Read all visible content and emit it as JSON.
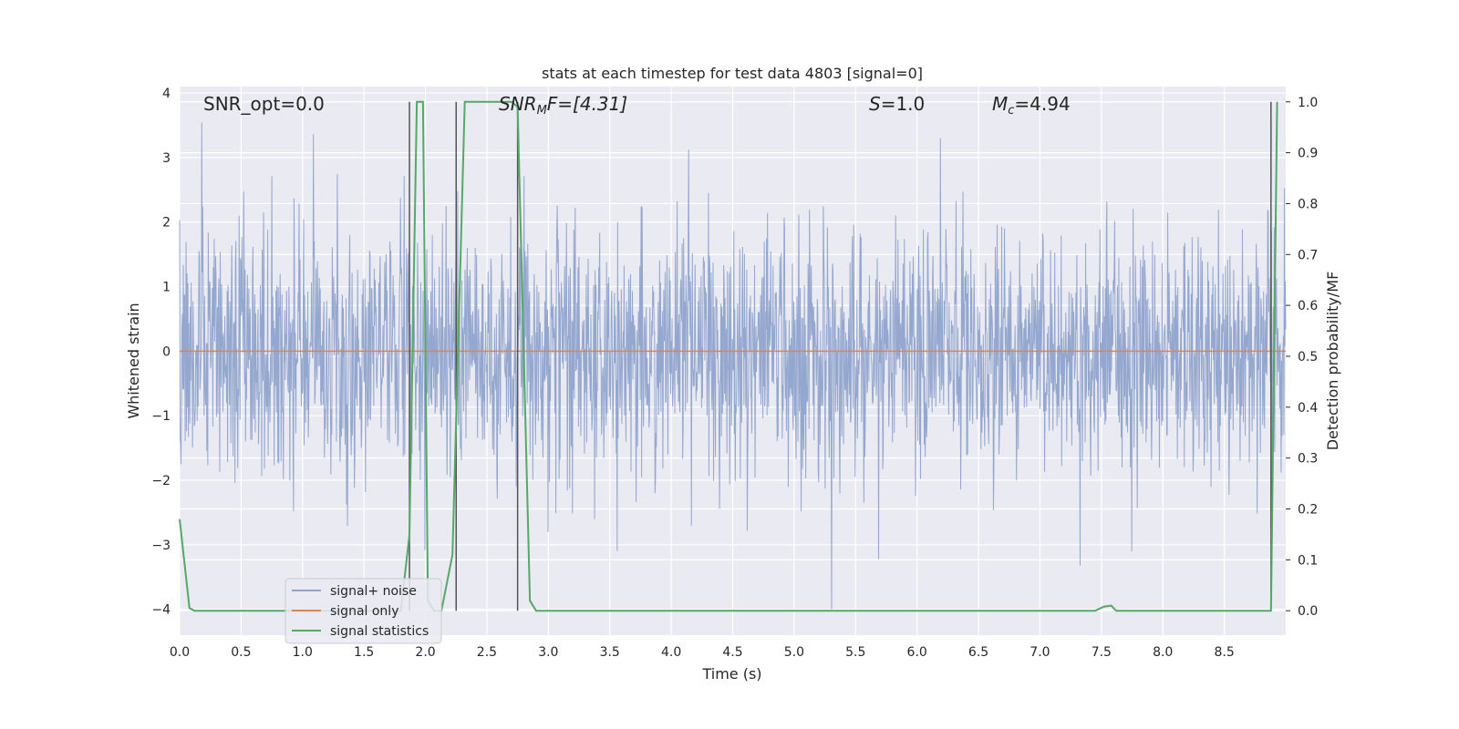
{
  "chart_data": {
    "type": "line",
    "title": "stats at each timestep for test data 4803 [signal=0]",
    "xlabel": "Time (s)",
    "ylabel": "Whitened strain",
    "y2label": "Detection probability/MF",
    "xlim": [
      0.0,
      9.0
    ],
    "ylim": [
      -4.4,
      4.1
    ],
    "y2lim": [
      -0.048,
      1.03
    ],
    "xticks": [
      "0.0",
      "0.5",
      "1.0",
      "1.5",
      "2.0",
      "2.5",
      "3.0",
      "3.5",
      "4.0",
      "4.5",
      "5.0",
      "5.5",
      "6.0",
      "6.5",
      "7.0",
      "7.5",
      "8.0",
      "8.5"
    ],
    "yticks": [
      "4",
      "3",
      "2",
      "1",
      "0",
      "−1",
      "−2",
      "−3",
      "−4"
    ],
    "y2ticks": [
      "1.0",
      "0.9",
      "0.8",
      "0.7",
      "0.6",
      "0.5",
      "0.4",
      "0.3",
      "0.2",
      "0.1",
      "0.0"
    ],
    "grid": true,
    "legend_position": "lower-left",
    "annotations": {
      "snr_opt": "SNR_opt=0.0",
      "snr_mf_name": "SNR",
      "snr_mf_sub": "M",
      "snr_mf_rest": "F=[4.31]",
      "s_name": "S",
      "s_rest": "=1.0",
      "mc_name": "M",
      "mc_sub": "c",
      "mc_rest": "=4.94"
    },
    "vertical_markers": [
      1.87,
      2.25,
      2.75,
      8.88
    ],
    "series": [
      {
        "name": "signal+ noise",
        "color": "#8fa3cc",
        "description": "dense whitened noise, approximately Gaussian with unit variance, peaks near +3.7 and -4.0"
      },
      {
        "name": "signal only",
        "color": "#dd8452",
        "x": [
          0.0,
          9.0
        ],
        "y": [
          0.0,
          0.0
        ]
      },
      {
        "name": "signal statistics",
        "color": "#55a868",
        "axis": "right",
        "x": [
          0.0,
          0.08,
          0.12,
          0.5,
          1.0,
          1.5,
          1.8,
          1.87,
          1.93,
          1.98,
          2.02,
          2.07,
          2.13,
          2.22,
          2.32,
          2.5,
          2.6,
          2.7,
          2.75,
          2.85,
          2.9,
          3.0,
          4.0,
          5.0,
          6.0,
          7.0,
          7.45,
          7.52,
          7.58,
          7.62,
          8.0,
          8.5,
          8.88,
          8.93
        ],
        "y": [
          0.18,
          0.005,
          0.0,
          0.0,
          0.0,
          0.0,
          0.0,
          0.15,
          1.0,
          1.0,
          0.02,
          0.0,
          0.0,
          0.11,
          1.0,
          1.0,
          1.0,
          1.0,
          0.99,
          0.02,
          0.0,
          0.0,
          0.0,
          0.0,
          0.0,
          0.0,
          0.0,
          0.008,
          0.01,
          0.0,
          0.0,
          0.0,
          0.0,
          1.0
        ]
      }
    ]
  }
}
